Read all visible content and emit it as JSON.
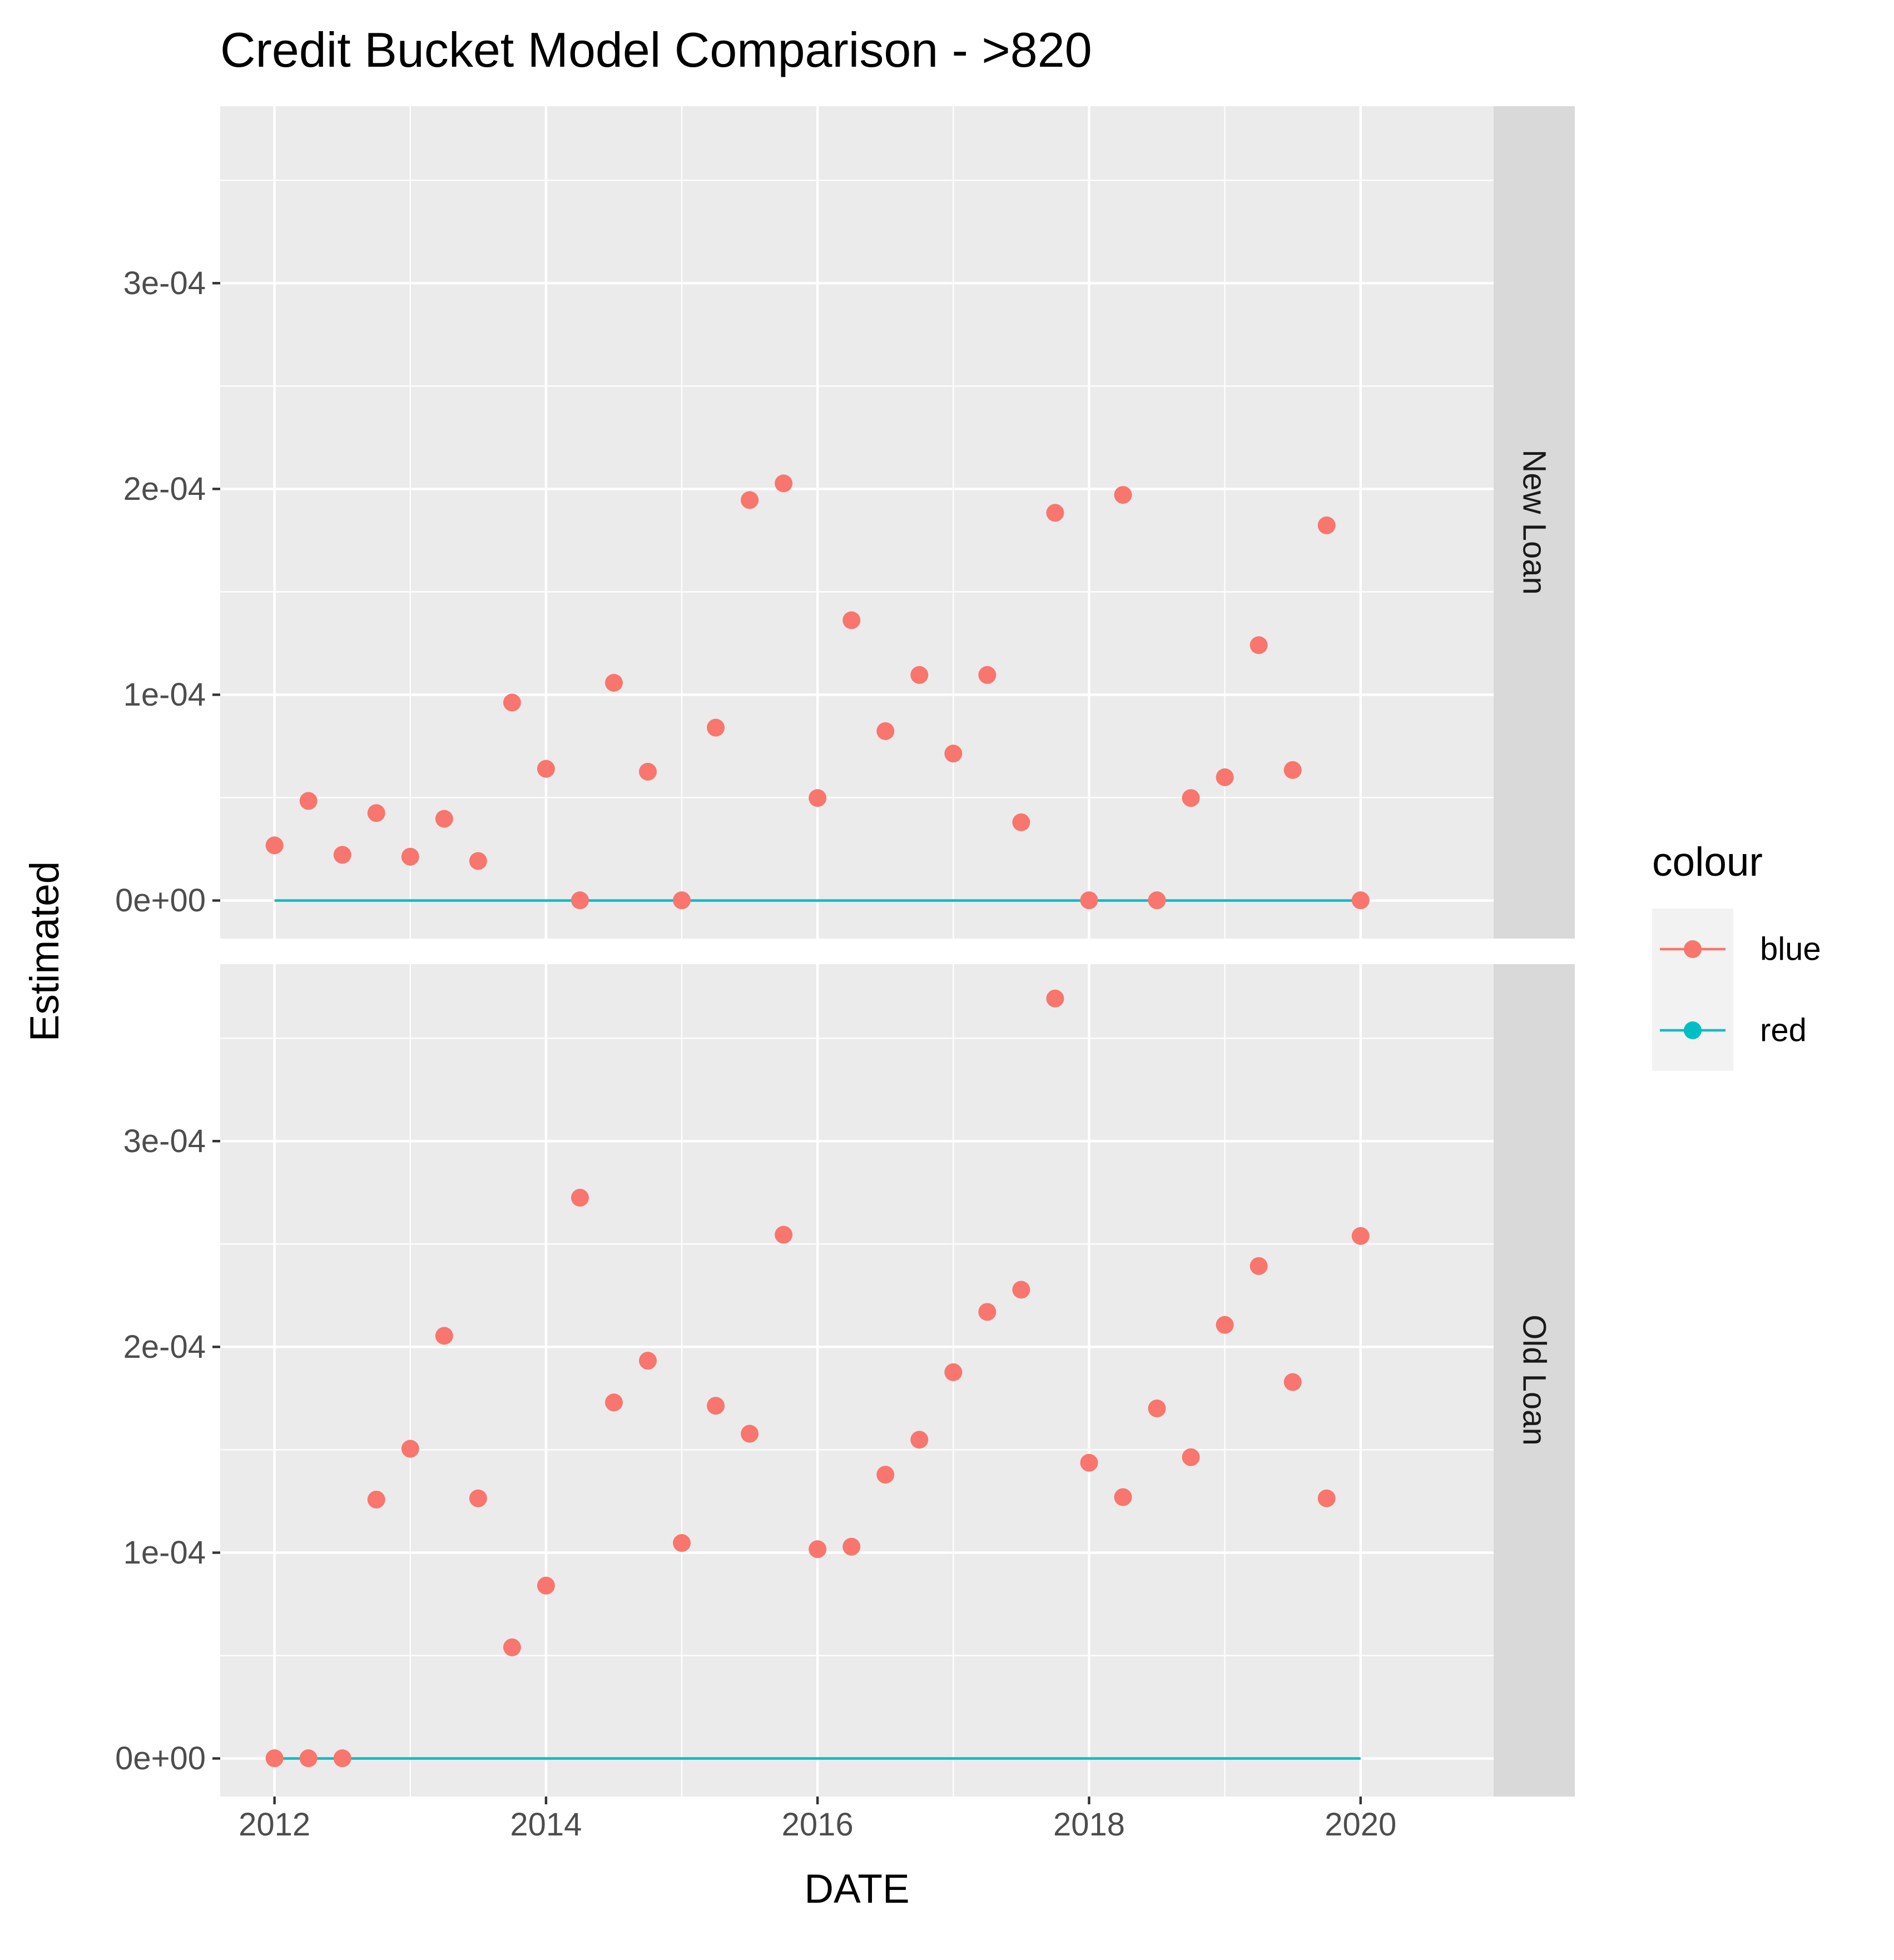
{
  "chart_data": {
    "type": "scatter",
    "title": "Credit Bucket Model Comparison - >820",
    "xlabel": "DATE",
    "ylabel": "Estimated",
    "xlim": [
      2011.6,
      2020.98
    ],
    "ylim": [
      -1.85e-05,
      0.000386
    ],
    "x_ticks": [
      {
        "value": 2012,
        "label": "2012"
      },
      {
        "value": 2014,
        "label": "2014"
      },
      {
        "value": 2016,
        "label": "2016"
      },
      {
        "value": 2018,
        "label": "2018"
      },
      {
        "value": 2020,
        "label": "2020"
      }
    ],
    "y_ticks": [
      {
        "value": 0,
        "label": "0e+00"
      },
      {
        "value": 0.0001,
        "label": "1e-04"
      },
      {
        "value": 0.0002,
        "label": "2e-04"
      },
      {
        "value": 0.0003,
        "label": "3e-04"
      }
    ],
    "facets": [
      {
        "label": "New Loan",
        "series": [
          {
            "name": "blue",
            "type": "scatter",
            "x": [
              2012,
              2012.25,
              2012.5,
              2012.75,
              2013,
              2013.25,
              2013.5,
              2013.75,
              2014,
              2014.25,
              2014.5,
              2014.75,
              2015,
              2015.25,
              2015.5,
              2015.75,
              2016,
              2016.25,
              2016.5,
              2016.75,
              2017,
              2017.25,
              2017.5,
              2017.75,
              2018,
              2018.25,
              2018.5,
              2018.75,
              2019,
              2019.25,
              2019.5,
              2019.75,
              2020
            ],
            "y": [
              2.68e-05,
              4.84e-05,
              2.22e-05,
              4.25e-05,
              2.13e-05,
              3.97e-05,
              1.92e-05,
              9.62e-05,
              6.4e-05,
              1e-07,
              0.0001058,
              6.26e-05,
              1e-07,
              8.4e-05,
              0.0001946,
              0.0002027,
              4.98e-05,
              0.0001362,
              8.23e-05,
              0.0001096,
              7.14e-05,
              0.0001096,
              3.8e-05,
              0.0001884,
              1e-07,
              0.0001971,
              1e-07,
              4.98e-05,
              5.99e-05,
              0.0001241,
              6.34e-05,
              0.0001823,
              1e-07
            ]
          },
          {
            "name": "red",
            "type": "line",
            "x": [
              2012,
              2020
            ],
            "y": [
              0,
              0
            ]
          }
        ]
      },
      {
        "label": "Old Loan",
        "series": [
          {
            "name": "blue",
            "type": "scatter",
            "x": [
              2012,
              2012.25,
              2012.5,
              2012.75,
              2013,
              2013.25,
              2013.5,
              2013.75,
              2014,
              2014.25,
              2014.5,
              2014.75,
              2015,
              2015.25,
              2015.5,
              2015.75,
              2016,
              2016.25,
              2016.5,
              2016.75,
              2017,
              2017.25,
              2017.5,
              2017.75,
              2018,
              2018.25,
              2018.5,
              2018.75,
              2019,
              2019.25,
              2019.5,
              2019.75,
              2020
            ],
            "y": [
              1e-07,
              1e-07,
              1e-07,
              0.0001258,
              0.0001505,
              0.0002054,
              0.0001264,
              5.4e-05,
              8.4e-05,
              0.0002725,
              0.000173,
              0.0001933,
              0.0001047,
              0.0001714,
              0.0001578,
              0.0002545,
              0.0001017,
              0.0001029,
              0.0001379,
              0.0001549,
              0.0001877,
              0.000217,
              0.0002278,
              0.0003693,
              0.0001437,
              0.000127,
              0.0001701,
              0.0001464,
              0.0002107,
              0.0002393,
              0.0001829,
              0.0001264,
              0.0002539
            ]
          },
          {
            "name": "red",
            "type": "line",
            "x": [
              2012,
              2020
            ],
            "y": [
              0,
              0
            ]
          }
        ]
      }
    ],
    "legend": {
      "title": "colour",
      "position": "right",
      "entries": [
        {
          "name": "blue",
          "color": "#F8766D"
        },
        {
          "name": "red",
          "color": "#00BFC4"
        }
      ]
    },
    "grid": true
  },
  "colors": {
    "panel_bg": "#EBEBEB",
    "strip_bg": "#D9D9D9",
    "grid": "#FFFFFF",
    "blue_series": "#F8766D",
    "red_series": "#00BFC4",
    "legend_key_bg": "#F2F2F2"
  }
}
